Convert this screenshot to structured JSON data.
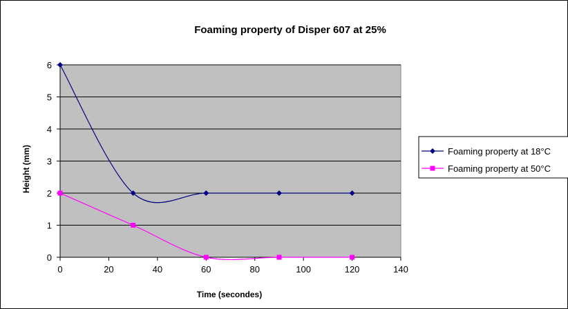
{
  "chart_data": {
    "type": "line",
    "title": "Foaming property of Disper 607 at 25%",
    "xlabel": "Time (secondes)",
    "ylabel": "Height (mm)",
    "xlim": [
      0,
      140
    ],
    "ylim": [
      0,
      6
    ],
    "x_ticks": [
      0,
      20,
      40,
      60,
      80,
      100,
      120,
      140
    ],
    "y_ticks": [
      0,
      1,
      2,
      3,
      4,
      5,
      6
    ],
    "grid": "horizontal",
    "plot_background": "#c0c0c0",
    "legend_position": "right",
    "smoothed": true,
    "series": [
      {
        "name": "Foaming property at 18°C",
        "color": "#000080",
        "marker": "diamond",
        "x": [
          0,
          30,
          60,
          90,
          120
        ],
        "y": [
          6,
          2,
          2,
          2,
          2
        ]
      },
      {
        "name": "Foaming property at 50°C",
        "color": "#ff00ff",
        "marker": "square",
        "x": [
          0,
          30,
          60,
          90,
          120
        ],
        "y": [
          2,
          1,
          0,
          0,
          0
        ]
      }
    ]
  }
}
